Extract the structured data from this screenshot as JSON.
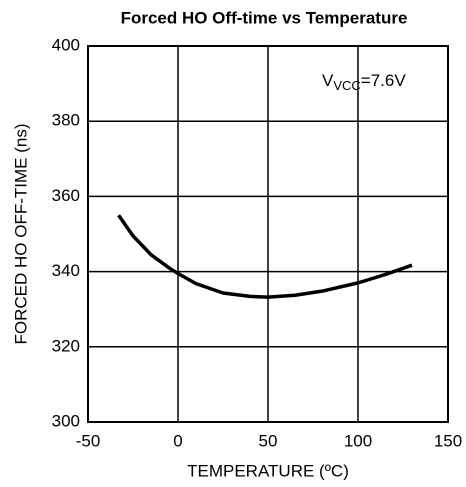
{
  "chart_data": {
    "type": "line",
    "title": "Forced HO Off-time vs Temperature",
    "xlabel": "TEMPERATURE (ºC)",
    "ylabel": "FORCED HO OFF-TIME (ns)",
    "annotation": {
      "main": "V",
      "sub": "VCC",
      "rest": "=7.6V"
    },
    "x": [
      -33,
      -25,
      -15,
      -5,
      0,
      10,
      25,
      40,
      50,
      65,
      80,
      100,
      115,
      130
    ],
    "series": [
      {
        "color": "#000000",
        "values": [
          355,
          349.5,
          344.5,
          341,
          339.5,
          336.8,
          334.3,
          333.4,
          333.2,
          333.7,
          334.8,
          337,
          339.2,
          341.7
        ]
      }
    ],
    "xlim": [
      -50,
      150
    ],
    "xticks": [
      -50,
      0,
      50,
      100,
      150
    ],
    "ylim": [
      300,
      400
    ],
    "yticks": [
      300,
      320,
      340,
      360,
      380,
      400
    ],
    "grid": true
  }
}
